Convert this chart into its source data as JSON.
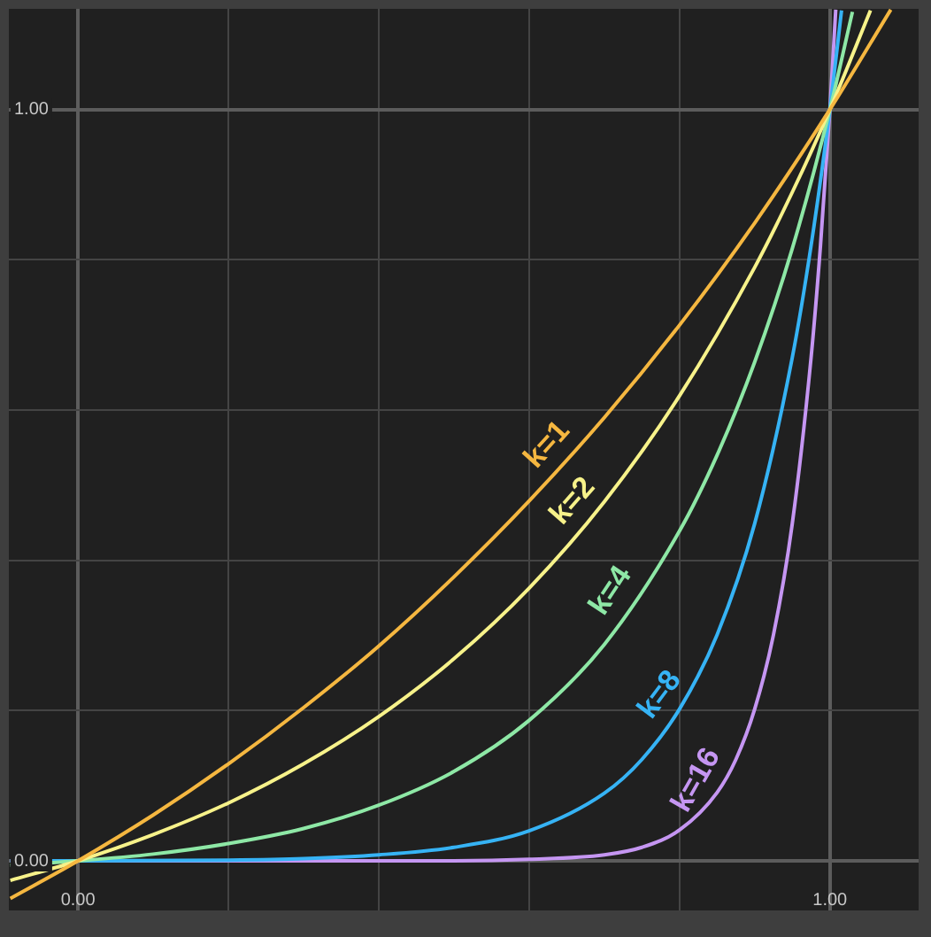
{
  "chart_data": {
    "type": "line",
    "xlim": [
      -0.092,
      1.118
    ],
    "ylim": [
      -0.066,
      1.134
    ],
    "xticks": [
      {
        "value": 0,
        "label": "0.00"
      },
      {
        "value": 0.2,
        "label": null
      },
      {
        "value": 0.4,
        "label": null
      },
      {
        "value": 0.6,
        "label": null
      },
      {
        "value": 0.8,
        "label": null
      },
      {
        "value": 1,
        "label": "1.00"
      }
    ],
    "yticks": [
      {
        "value": 0,
        "label": "0.00"
      },
      {
        "value": 0.2,
        "label": null
      },
      {
        "value": 0.4,
        "label": null
      },
      {
        "value": 0.6,
        "label": null
      },
      {
        "value": 0.8,
        "label": null
      },
      {
        "value": 1,
        "label": "1.00"
      }
    ],
    "grid": true,
    "legend": false,
    "marker": "none",
    "line_style": "solid",
    "series": [
      {
        "name": "k=1",
        "color": "#f5b740",
        "x": [
          -0.09,
          0,
          0.1,
          0.2,
          0.3,
          0.4,
          0.5,
          0.6,
          0.7,
          0.8,
          0.9,
          1,
          1.081
        ],
        "values": [
          -0.05,
          0,
          0.061,
          0.129,
          0.204,
          0.286,
          0.378,
          0.479,
          0.59,
          0.713,
          0.849,
          1,
          1.133
        ]
      },
      {
        "name": "k=2",
        "color": "#f7f28a",
        "x": [
          -0.09,
          0,
          0.1,
          0.2,
          0.3,
          0.4,
          0.5,
          0.6,
          0.7,
          0.8,
          0.9,
          0.95,
          1,
          1.054
        ],
        "values": [
          -0.026,
          0,
          0.035,
          0.077,
          0.129,
          0.192,
          0.269,
          0.363,
          0.478,
          0.619,
          0.79,
          0.89,
          1,
          1.132
        ]
      },
      {
        "name": "k=4",
        "color": "#8ee8a6",
        "x": [
          -0.09,
          0,
          0.1,
          0.2,
          0.3,
          0.4,
          0.5,
          0.6,
          0.7,
          0.8,
          0.85,
          0.9,
          0.95,
          1,
          1.03
        ],
        "values": [
          -0.006,
          0,
          0.009,
          0.023,
          0.043,
          0.074,
          0.119,
          0.187,
          0.288,
          0.439,
          0.54,
          0.664,
          0.815,
          1,
          1.13
        ]
      },
      {
        "name": "k=8",
        "color": "#36b3f5",
        "x": [
          -0.09,
          0,
          0.2,
          0.3,
          0.4,
          0.5,
          0.6,
          0.7,
          0.75,
          0.8,
          0.85,
          0.9,
          0.95,
          0.975,
          1,
          1.0155
        ],
        "values": [
          0,
          0,
          0.001,
          0.003,
          0.008,
          0.018,
          0.04,
          0.09,
          0.135,
          0.202,
          0.301,
          0.449,
          0.67,
          0.819,
          1,
          1.132
        ]
      },
      {
        "name": "k=16",
        "color": "#c596f2",
        "x": [
          -0.09,
          0,
          0.5,
          0.6,
          0.7,
          0.75,
          0.8,
          0.85,
          0.875,
          0.9,
          0.925,
          0.95,
          0.975,
          0.9875,
          1,
          1.0078
        ],
        "values": [
          0,
          0,
          0,
          0.002,
          0.008,
          0.018,
          0.041,
          0.091,
          0.135,
          0.202,
          0.301,
          0.449,
          0.67,
          0.819,
          1,
          1.133
        ]
      }
    ]
  }
}
